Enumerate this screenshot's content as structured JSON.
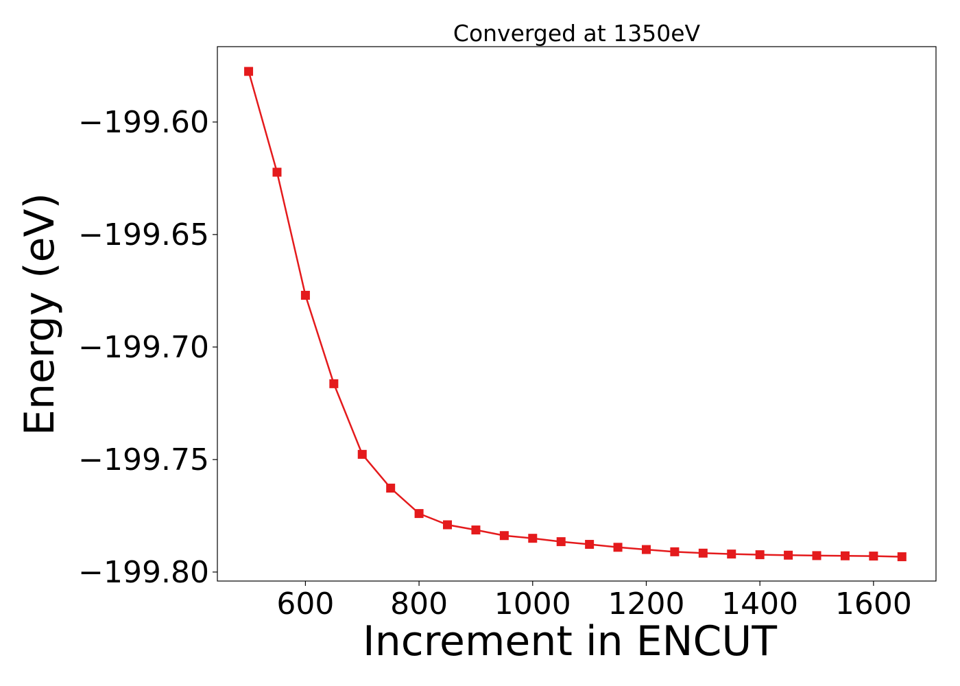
{
  "chart_data": {
    "type": "line",
    "title": "Converged at 1350eV",
    "xlabel": "Increment in ENCUT",
    "ylabel": "Energy (eV)",
    "xlim": [
      445,
      1710
    ],
    "ylim": [
      -199.804,
      -199.5665
    ],
    "xticks": [
      600,
      800,
      1000,
      1200,
      1400,
      1600
    ],
    "xtick_labels": [
      "600",
      "800",
      "1000",
      "1200",
      "1400",
      "1600"
    ],
    "yticks": [
      -199.6,
      -199.65,
      -199.7,
      -199.75,
      -199.8
    ],
    "ytick_labels": [
      "−199.60",
      "−199.65",
      "−199.70",
      "−199.75",
      "−199.80"
    ],
    "grid": false,
    "legend": "none",
    "series": [
      {
        "color": "#e41a1c",
        "marker": "square",
        "x": [
          500,
          550,
          600,
          650,
          700,
          750,
          800,
          850,
          900,
          950,
          1000,
          1050,
          1100,
          1150,
          1200,
          1250,
          1300,
          1350,
          1400,
          1450,
          1500,
          1550,
          1600,
          1650
        ],
        "y": [
          -199.5775,
          -199.6223,
          -199.677,
          -199.7163,
          -199.7477,
          -199.7627,
          -199.774,
          -199.779,
          -199.7813,
          -199.7838,
          -199.785,
          -199.7865,
          -199.7877,
          -199.789,
          -199.79,
          -199.791,
          -199.7916,
          -199.792,
          -199.7923,
          -199.7925,
          -199.7927,
          -199.7928,
          -199.7929,
          -199.7932
        ]
      }
    ]
  }
}
